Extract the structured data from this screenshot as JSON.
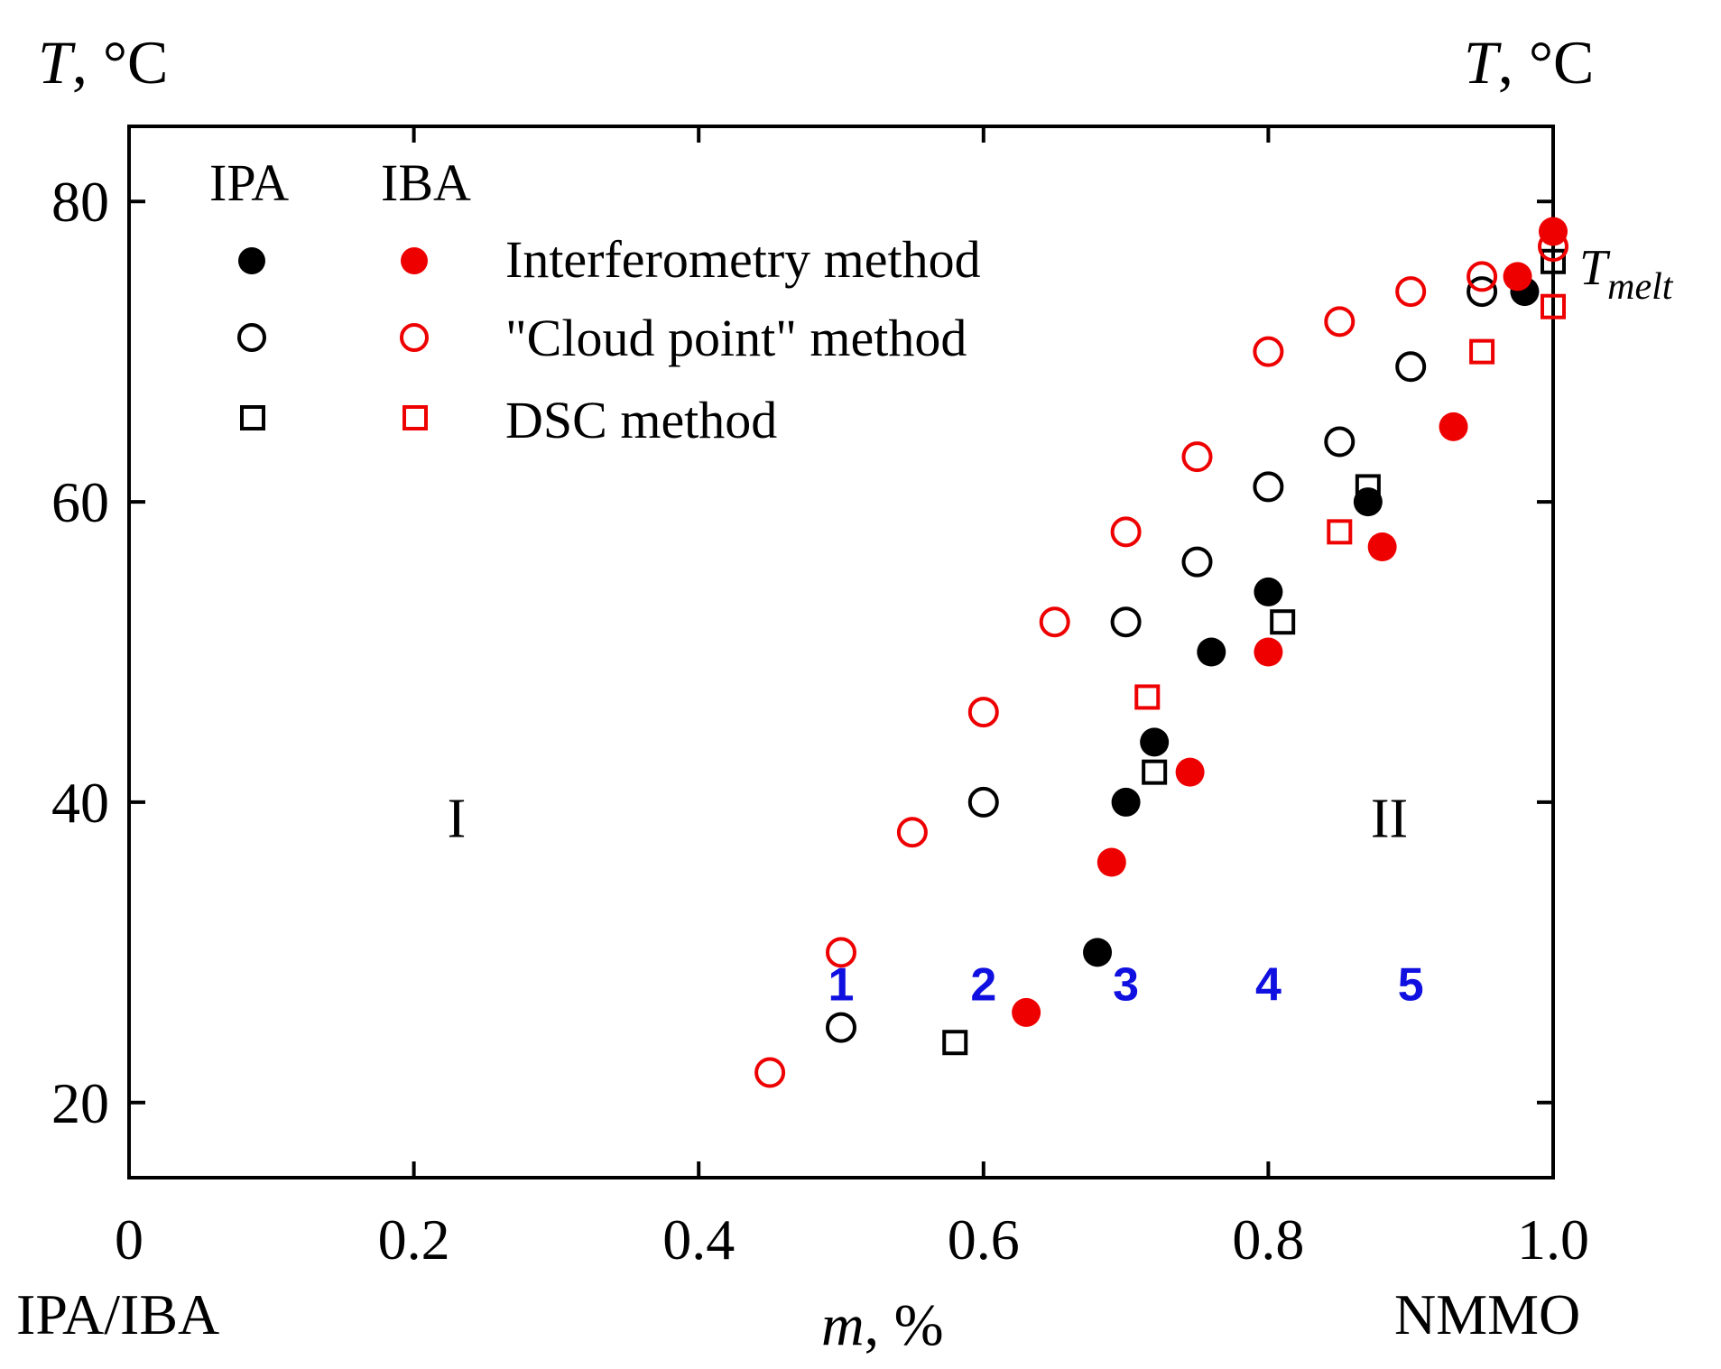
{
  "chart_data": {
    "type": "scatter",
    "title": "",
    "xlabel_var": "m",
    "xlabel_unit": ", %",
    "ylabel_var": "T",
    "ylabel_unit": ", °C",
    "x_left_label": "IPA/IBA",
    "x_right_label": "NMMO",
    "xlim": [
      0,
      1.0
    ],
    "ylim": [
      15,
      85
    ],
    "x_ticks": [
      0,
      0.2,
      0.4,
      0.6,
      0.8,
      1.0
    ],
    "x_tick_labels": [
      "0",
      "0.2",
      "0.4",
      "0.6",
      "0.8",
      "1.0"
    ],
    "y_ticks": [
      20,
      40,
      60,
      80
    ],
    "y_tick_labels": [
      "20",
      "40",
      "60",
      "80"
    ],
    "legend": {
      "col_headers": [
        "IPA",
        "IBA"
      ],
      "rows": [
        "Interferometry method",
        "\"Cloud point\" method",
        "DSC method"
      ]
    },
    "regions": [
      {
        "label": "I",
        "x": 0.23,
        "y": 39
      },
      {
        "label": "II",
        "x": 0.885,
        "y": 39
      }
    ],
    "numbers": [
      {
        "label": "1",
        "x": 0.5,
        "y": 28
      },
      {
        "label": "2",
        "x": 0.6,
        "y": 28
      },
      {
        "label": "3",
        "x": 0.7,
        "y": 28
      },
      {
        "label": "4",
        "x": 0.8,
        "y": 28
      },
      {
        "label": "5",
        "x": 0.9,
        "y": 28
      }
    ],
    "tmelt": {
      "main": "T",
      "sub": "melt",
      "x": 1.0,
      "y": 76
    },
    "colors": {
      "ipa": "#000000",
      "iba": "#ee0000",
      "numbers": "#1010e0"
    },
    "series": [
      {
        "name": "IPA Interferometry method",
        "solvent": "IPA",
        "marker": "circle-filled",
        "points": [
          [
            0.68,
            30
          ],
          [
            0.7,
            40
          ],
          [
            0.72,
            44
          ],
          [
            0.76,
            50
          ],
          [
            0.8,
            54
          ],
          [
            0.87,
            60
          ],
          [
            0.98,
            74
          ]
        ]
      },
      {
        "name": "IPA Cloud point method",
        "solvent": "IPA",
        "marker": "circle-open",
        "points": [
          [
            0.5,
            25
          ],
          [
            0.6,
            40
          ],
          [
            0.7,
            52
          ],
          [
            0.75,
            56
          ],
          [
            0.8,
            61
          ],
          [
            0.85,
            64
          ],
          [
            0.9,
            69
          ],
          [
            0.95,
            74
          ]
        ]
      },
      {
        "name": "IPA DSC method",
        "solvent": "IPA",
        "marker": "square-open",
        "points": [
          [
            0.58,
            24
          ],
          [
            0.72,
            42
          ],
          [
            0.81,
            52
          ],
          [
            0.87,
            61
          ],
          [
            1.0,
            76
          ]
        ]
      },
      {
        "name": "IBA Interferometry method",
        "solvent": "IBA",
        "marker": "circle-filled",
        "points": [
          [
            0.63,
            26
          ],
          [
            0.69,
            36
          ],
          [
            0.745,
            42
          ],
          [
            0.8,
            50
          ],
          [
            0.88,
            57
          ],
          [
            0.93,
            65
          ],
          [
            0.975,
            75
          ],
          [
            1.0,
            78
          ]
        ]
      },
      {
        "name": "IBA Cloud point method",
        "solvent": "IBA",
        "marker": "circle-open",
        "points": [
          [
            0.45,
            22
          ],
          [
            0.5,
            30
          ],
          [
            0.55,
            38
          ],
          [
            0.6,
            46
          ],
          [
            0.65,
            52
          ],
          [
            0.7,
            58
          ],
          [
            0.75,
            63
          ],
          [
            0.8,
            70
          ],
          [
            0.85,
            72
          ],
          [
            0.9,
            74
          ],
          [
            0.95,
            75
          ],
          [
            1.0,
            77
          ]
        ]
      },
      {
        "name": "IBA DSC method",
        "solvent": "IBA",
        "marker": "square-open",
        "points": [
          [
            0.715,
            47
          ],
          [
            0.85,
            58
          ],
          [
            0.95,
            70
          ],
          [
            1.0,
            73
          ]
        ]
      }
    ]
  }
}
